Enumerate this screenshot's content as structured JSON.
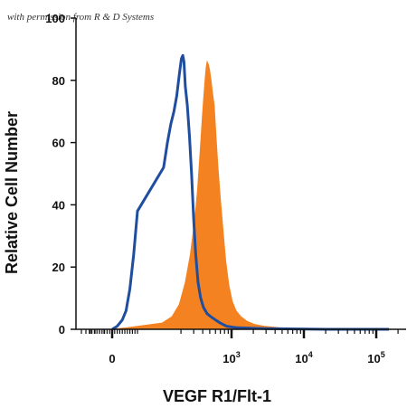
{
  "watermark": "with permission from R & D Systems",
  "chart_data": {
    "type": "area",
    "title": "",
    "xlabel": "VEGF R1/Flt-1",
    "ylabel": "Relative Cell Number",
    "x_scale": "biexponential (log decades above 10^2)",
    "x_ticks": [
      {
        "label": "0",
        "value": 0
      },
      {
        "label": "10",
        "sup": "3",
        "value": 1000
      },
      {
        "label": "10",
        "sup": "4",
        "value": 10000
      },
      {
        "label": "10",
        "sup": "5",
        "value": 100000
      }
    ],
    "y_ticks": [
      0,
      20,
      40,
      60,
      80,
      100
    ],
    "ylim": [
      0,
      100
    ],
    "grid": false,
    "legend": "none",
    "series": [
      {
        "style": "filled",
        "color": "#F58220",
        "points": [
          [
            0,
            0
          ],
          [
            60,
            0.5
          ],
          [
            110,
            2
          ],
          [
            150,
            4
          ],
          [
            190,
            8
          ],
          [
            230,
            15
          ],
          [
            270,
            24
          ],
          [
            310,
            35
          ],
          [
            340,
            45
          ],
          [
            370,
            58
          ],
          [
            395,
            68
          ],
          [
            415,
            75
          ],
          [
            430,
            80
          ],
          [
            445,
            84
          ],
          [
            460,
            86
          ],
          [
            480,
            85
          ],
          [
            500,
            83
          ],
          [
            520,
            80
          ],
          [
            545,
            76
          ],
          [
            575,
            72
          ],
          [
            610,
            62
          ],
          [
            650,
            52
          ],
          [
            700,
            42
          ],
          [
            760,
            32
          ],
          [
            830,
            22
          ],
          [
            920,
            14
          ],
          [
            1020,
            9
          ],
          [
            1150,
            6
          ],
          [
            1350,
            4
          ],
          [
            1650,
            2.5
          ],
          [
            2100,
            1.5
          ],
          [
            2800,
            1
          ],
          [
            4500,
            0.5
          ],
          [
            9000,
            0.2
          ],
          [
            40000,
            0
          ],
          [
            150000,
            0
          ]
        ]
      },
      {
        "style": "line",
        "color": "#1F4E9E",
        "points": [
          [
            0,
            0
          ],
          [
            20,
            1
          ],
          [
            40,
            3
          ],
          [
            55,
            6
          ],
          [
            70,
            13
          ],
          [
            85,
            24
          ],
          [
            100,
            38
          ],
          [
            115,
            52
          ],
          [
            130,
            60
          ],
          [
            145,
            66
          ],
          [
            160,
            70
          ],
          [
            175,
            75
          ],
          [
            190,
            82
          ],
          [
            203,
            87
          ],
          [
            212,
            88
          ],
          [
            220,
            86
          ],
          [
            230,
            78
          ],
          [
            245,
            72
          ],
          [
            262,
            62
          ],
          [
            280,
            50
          ],
          [
            300,
            35
          ],
          [
            320,
            24
          ],
          [
            345,
            15
          ],
          [
            375,
            10
          ],
          [
            410,
            7
          ],
          [
            460,
            5
          ],
          [
            520,
            4
          ],
          [
            600,
            3
          ],
          [
            700,
            2
          ],
          [
            850,
            1
          ],
          [
            1200,
            0.5
          ],
          [
            3000,
            0.2
          ],
          [
            20000,
            0
          ],
          [
            150000,
            0
          ]
        ]
      }
    ]
  }
}
